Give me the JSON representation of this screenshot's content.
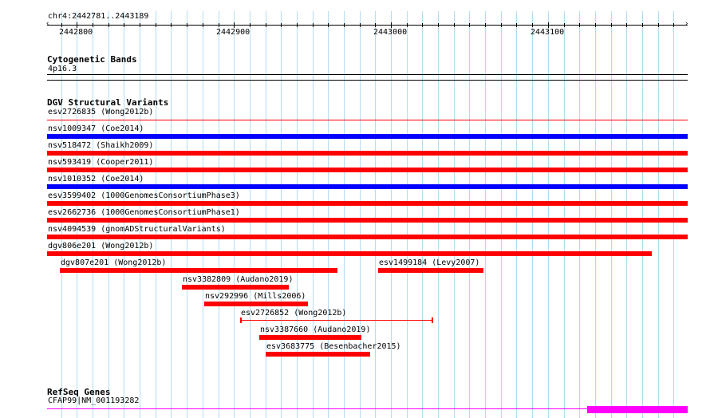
{
  "locus": "chr4:2442781..2443189",
  "ruler": {
    "start": 2442781,
    "end": 2443189,
    "labels": [
      "2442800",
      "2442900",
      "2443000",
      "2443100"
    ],
    "label_positions": [
      2442800,
      2442900,
      2443000,
      2443100
    ]
  },
  "cytoband": {
    "title": "Cytogenetic Bands",
    "band": "4p16.3"
  },
  "dgv": {
    "title": "DGV Structural Variants",
    "colors": {
      "loss": "#ff0000",
      "gain": "#0000ff"
    },
    "features": [
      {
        "label": "esv2726835 (Wong2012b)",
        "start": 2442781,
        "end": 2443189,
        "type": "loss",
        "style": "line"
      },
      {
        "label": "nsv1009347 (Coe2014)",
        "start": 2442781,
        "end": 2443189,
        "type": "gain",
        "style": "bar"
      },
      {
        "label": "nsv518472 (Shaikh2009)",
        "start": 2442781,
        "end": 2443189,
        "type": "loss",
        "style": "bar"
      },
      {
        "label": "nsv593419 (Cooper2011)",
        "start": 2442781,
        "end": 2443189,
        "type": "loss",
        "style": "bar"
      },
      {
        "label": "nsv1010352 (Coe2014)",
        "start": 2442781,
        "end": 2443189,
        "type": "gain",
        "style": "bar"
      },
      {
        "label": "esv3599402 (1000GenomesConsortiumPhase3)",
        "start": 2442781,
        "end": 2443189,
        "type": "loss",
        "style": "bar"
      },
      {
        "label": "esv2662736 (1000GenomesConsortiumPhase1)",
        "start": 2442781,
        "end": 2443189,
        "type": "loss",
        "style": "bar"
      },
      {
        "label": "nsv4094539 (gnomADStructuralVariants)",
        "start": 2442781,
        "end": 2443189,
        "type": "loss",
        "style": "bar"
      },
      {
        "label": "dgv806e201 (Wong2012b)",
        "start": 2442781,
        "end": 2443166,
        "type": "loss",
        "style": "bar"
      },
      {
        "label": "dgv807e201 (Wong2012b)",
        "start": 2442789,
        "end": 2442966,
        "type": "loss",
        "style": "bar"
      },
      {
        "label": "esv1499184 (Levy2007)",
        "start": 2442992,
        "end": 2443059,
        "type": "loss",
        "style": "bar"
      },
      {
        "label": "nsv3382809 (Audano2019)",
        "start": 2442867,
        "end": 2442935,
        "type": "loss",
        "style": "bar"
      },
      {
        "label": "nsv292996 (Mills2006)",
        "start": 2442881,
        "end": 2442947,
        "type": "loss",
        "style": "bar"
      },
      {
        "label": "esv2726852 (Wong2012b)",
        "start": 2442904,
        "end": 2443027,
        "type": "loss",
        "style": "line"
      },
      {
        "label": "nsv3387660 (Audano2019)",
        "start": 2442916,
        "end": 2442981,
        "type": "loss",
        "style": "bar"
      },
      {
        "label": "esv3683775 (Besenbacher2015)",
        "start": 2442920,
        "end": 2442987,
        "type": "loss",
        "style": "bar"
      }
    ]
  },
  "refseq": {
    "title": "RefSeq Genes",
    "gene_label": "CFAP99|NM_001193282",
    "color": "#ff00ff",
    "intron": {
      "start": 2442781,
      "end": 2443125
    },
    "exon": {
      "start": 2443125,
      "end": 2443189
    }
  }
}
